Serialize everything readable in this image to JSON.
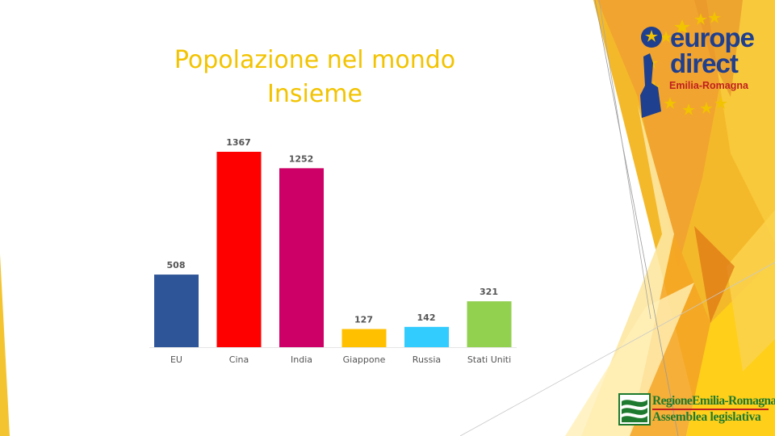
{
  "title": {
    "line1": "Popolazione nel mondo",
    "line2": "Insieme"
  },
  "logo_europe_direct": {
    "line1": "europe",
    "line2": "direct",
    "region": "Emilia-Romagna"
  },
  "logo_regione": {
    "line1": "RegioneEmilia-Romagna",
    "line2": "Assemblea legislativa"
  },
  "colors": {
    "accent_yellow": "#f2c300",
    "orange": "#f5a623",
    "logo_blue": "#1f3f8f",
    "logo_green": "#1e7a2e"
  },
  "chart_data": {
    "type": "bar",
    "title": "",
    "xlabel": "",
    "ylabel": "",
    "categories": [
      "EU",
      "Cina",
      "India",
      "Giappone",
      "Russia",
      "Stati Uniti"
    ],
    "values": [
      508,
      1367,
      1252,
      127,
      142,
      321
    ],
    "colors": [
      "#2e5597",
      "#ff0000",
      "#cc0066",
      "#ffc000",
      "#33ccff",
      "#92d050"
    ],
    "ylim": [
      0,
      1367
    ],
    "grid": false,
    "legend": "none",
    "data_labels": true
  }
}
